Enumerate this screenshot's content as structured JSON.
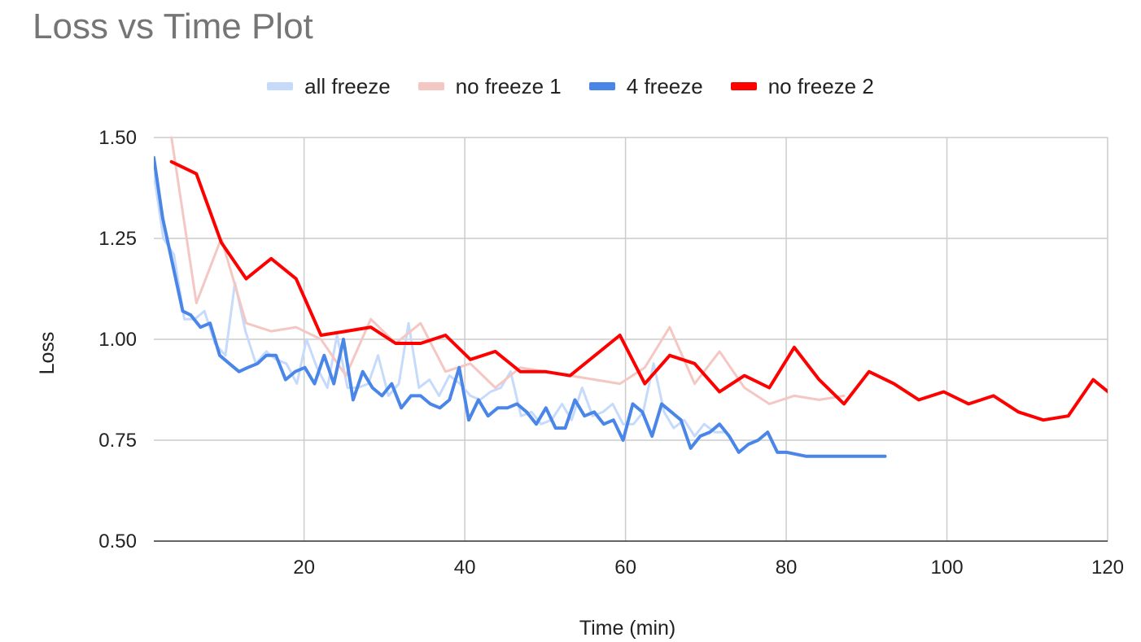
{
  "chart_data": {
    "type": "line",
    "title": "Loss vs Time Plot",
    "xlabel": "Time (min)",
    "ylabel": "Loss",
    "xlim": [
      1.3,
      120
    ],
    "ylim": [
      0.5,
      1.5
    ],
    "x_ticks": [
      20,
      40,
      60,
      80,
      100,
      120
    ],
    "y_ticks": [
      0.5,
      0.75,
      1.0,
      1.25,
      1.5
    ],
    "x_tick_labels": [
      "20",
      "40",
      "60",
      "80",
      "100",
      "120"
    ],
    "y_tick_labels": [
      "0.50",
      "0.75",
      "1.00",
      "1.25",
      "1.50"
    ],
    "grid": true,
    "legend_position": "top",
    "series": [
      {
        "name": "all freeze",
        "color": "#c6dafc",
        "x": [
          1.3,
          2.5,
          3.8,
          5.1,
          6.4,
          7.6,
          8.9,
          10.2,
          11.4,
          12.7,
          14.0,
          15.3,
          16.5,
          17.8,
          19.1,
          20.3,
          21.6,
          22.9,
          24.1,
          25.4,
          26.7,
          28.0,
          29.2,
          30.5,
          31.8,
          33.0,
          34.3,
          35.6,
          36.8,
          38.1,
          39.4,
          40.7,
          41.9,
          43.2,
          44.5,
          45.7,
          47.0,
          48.3,
          49.5,
          50.8,
          52.1,
          53.3,
          54.6,
          55.9,
          57.2,
          58.4,
          59.7,
          61.0,
          62.2,
          63.5,
          64.8,
          66.0,
          67.3,
          68.6,
          69.8,
          71.1,
          72.4
        ],
        "y": [
          1.41,
          1.25,
          1.21,
          1.05,
          1.05,
          1.07,
          0.99,
          0.96,
          1.14,
          1.02,
          0.94,
          0.97,
          0.95,
          0.94,
          0.89,
          1.0,
          0.93,
          0.88,
          1.01,
          0.88,
          0.88,
          0.89,
          0.96,
          0.86,
          0.89,
          1.04,
          0.88,
          0.9,
          0.86,
          0.91,
          0.89,
          0.86,
          0.85,
          0.87,
          0.88,
          0.92,
          0.81,
          0.82,
          0.79,
          0.8,
          0.84,
          0.8,
          0.88,
          0.81,
          0.82,
          0.84,
          0.79,
          0.79,
          0.82,
          0.94,
          0.82,
          0.78,
          0.8,
          0.76,
          0.79,
          0.77,
          0.77
        ]
      },
      {
        "name": "no freeze 1",
        "color": "#f4c7c3",
        "x": [
          3.5,
          6.6,
          9.7,
          12.8,
          15.9,
          19.0,
          22.1,
          25.2,
          28.3,
          31.4,
          34.5,
          37.6,
          40.7,
          43.8,
          46.9,
          50.0,
          53.1,
          56.2,
          59.3,
          62.4,
          65.5,
          68.6,
          71.7,
          74.8,
          77.9,
          81.0,
          84.1,
          87.2
        ],
        "y": [
          1.5,
          1.09,
          1.25,
          1.04,
          1.02,
          1.03,
          1.0,
          0.91,
          1.05,
          0.99,
          1.04,
          0.92,
          0.94,
          0.88,
          0.93,
          0.92,
          0.91,
          0.9,
          0.89,
          0.93,
          1.03,
          0.89,
          0.97,
          0.88,
          0.84,
          0.86,
          0.85,
          0.86
        ]
      },
      {
        "name": "4 freeze",
        "color": "#4a86e8",
        "x": [
          1.3,
          2.4,
          4.9,
          5.9,
          7.1,
          8.3,
          9.5,
          10.7,
          11.9,
          13.0,
          14.2,
          15.3,
          16.5,
          17.7,
          18.9,
          20.1,
          21.3,
          22.5,
          23.7,
          24.9,
          26.1,
          27.3,
          28.5,
          29.7,
          30.9,
          32.1,
          33.3,
          34.5,
          35.7,
          36.9,
          38.1,
          39.3,
          40.5,
          41.7,
          42.9,
          44.1,
          45.3,
          46.5,
          47.7,
          48.9,
          50.1,
          51.3,
          52.5,
          53.7,
          54.9,
          56.1,
          57.3,
          58.5,
          59.7,
          60.9,
          62.1,
          63.3,
          64.5,
          65.7,
          66.9,
          68.1,
          69.3,
          70.5,
          71.7,
          72.9,
          74.1,
          75.3,
          76.5,
          77.7,
          78.9,
          80.1,
          82.5,
          85.0,
          86.2,
          87.4,
          89.3,
          90.4,
          92.3
        ],
        "y": [
          1.45,
          1.3,
          1.07,
          1.06,
          1.03,
          1.04,
          0.96,
          0.94,
          0.92,
          0.93,
          0.94,
          0.96,
          0.96,
          0.9,
          0.92,
          0.93,
          0.89,
          0.96,
          0.89,
          1.0,
          0.85,
          0.92,
          0.88,
          0.86,
          0.89,
          0.83,
          0.86,
          0.86,
          0.84,
          0.83,
          0.85,
          0.93,
          0.8,
          0.85,
          0.81,
          0.83,
          0.83,
          0.84,
          0.82,
          0.79,
          0.83,
          0.78,
          0.78,
          0.85,
          0.81,
          0.82,
          0.79,
          0.8,
          0.75,
          0.84,
          0.82,
          0.76,
          0.84,
          0.82,
          0.8,
          0.73,
          0.76,
          0.77,
          0.79,
          0.76,
          0.72,
          0.74,
          0.75,
          0.77,
          0.72,
          0.72,
          0.71,
          0.71,
          0.71,
          0.71,
          0.71,
          0.71,
          0.71
        ]
      },
      {
        "name": "no freeze 2",
        "color": "#ff0000",
        "x": [
          3.5,
          6.6,
          9.7,
          12.8,
          15.9,
          19.0,
          22.1,
          25.2,
          28.3,
          31.4,
          34.5,
          37.6,
          40.7,
          43.8,
          46.9,
          50.0,
          53.1,
          56.2,
          59.3,
          62.4,
          65.5,
          68.6,
          71.7,
          74.8,
          77.9,
          81.0,
          84.1,
          87.2,
          90.3,
          93.4,
          96.5,
          99.6,
          102.7,
          105.8,
          108.9,
          112.0,
          115.1,
          118.2,
          121.3
        ],
        "y": [
          1.44,
          1.41,
          1.24,
          1.15,
          1.2,
          1.15,
          1.01,
          1.02,
          1.03,
          0.99,
          0.99,
          1.01,
          0.95,
          0.97,
          0.92,
          0.92,
          0.91,
          0.96,
          1.01,
          0.89,
          0.96,
          0.94,
          0.87,
          0.91,
          0.88,
          0.98,
          0.9,
          0.84,
          0.92,
          0.89,
          0.85,
          0.87,
          0.84,
          0.86,
          0.82,
          0.8,
          0.81,
          0.9,
          0.85
        ]
      }
    ]
  }
}
